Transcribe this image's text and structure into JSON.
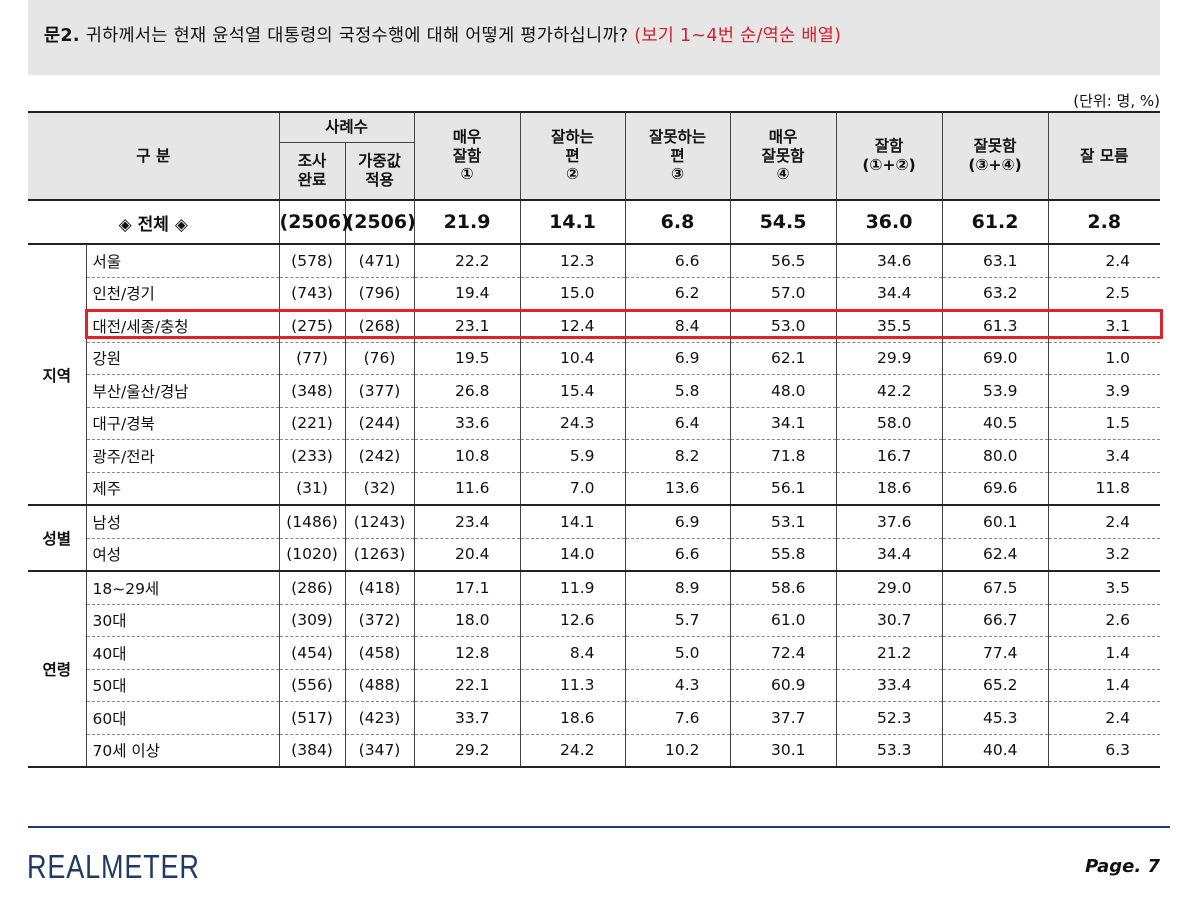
{
  "question": {
    "number": "문2.",
    "text": "귀하께서는 현재 윤석열 대통령의 국정수행에 대해 어떻게 평가하십니까?",
    "note": "(보기 1~4번 순/역순 배열)"
  },
  "unit": "(단위: 명, %)",
  "headers": {
    "category": "구  분",
    "sample_group": "사례수",
    "col_survey": [
      "조사",
      "완료"
    ],
    "col_weighted": [
      "가중값",
      "적용"
    ],
    "col_very_good": [
      "매우",
      "잘함",
      "①"
    ],
    "col_good": [
      "잘하는",
      "편",
      "②"
    ],
    "col_bad": [
      "잘못하는",
      "편",
      "③"
    ],
    "col_very_bad": [
      "매우",
      "잘못함",
      "④"
    ],
    "col_good_sum": [
      "잘함",
      "(①+②)"
    ],
    "col_bad_sum": [
      "잘못함",
      "(③+④)"
    ],
    "col_dont_know": "잘 모름"
  },
  "total": {
    "label": "◈ 전체 ◈",
    "values": [
      "(2506)",
      "(2506)",
      "21.9",
      "14.1",
      "6.8",
      "54.5",
      "36.0",
      "61.2",
      "2.8"
    ]
  },
  "groups": [
    {
      "label": "지역",
      "rows": [
        {
          "label": "서울",
          "values": [
            "(578)",
            "(471)",
            "22.2",
            "12.3",
            "6.6",
            "56.5",
            "34.6",
            "63.1",
            "2.4"
          ]
        },
        {
          "label": "인천/경기",
          "values": [
            "(743)",
            "(796)",
            "19.4",
            "15.0",
            "6.2",
            "57.0",
            "34.4",
            "63.2",
            "2.5"
          ]
        },
        {
          "label": "대전/세종/충청",
          "values": [
            "(275)",
            "(268)",
            "23.1",
            "12.4",
            "8.4",
            "53.0",
            "35.5",
            "61.3",
            "3.1"
          ]
        },
        {
          "label": "강원",
          "values": [
            "(77)",
            "(76)",
            "19.5",
            "10.4",
            "6.9",
            "62.1",
            "29.9",
            "69.0",
            "1.0"
          ]
        },
        {
          "label": "부산/울산/경남",
          "values": [
            "(348)",
            "(377)",
            "26.8",
            "15.4",
            "5.8",
            "48.0",
            "42.2",
            "53.9",
            "3.9"
          ]
        },
        {
          "label": "대구/경북",
          "values": [
            "(221)",
            "(244)",
            "33.6",
            "24.3",
            "6.4",
            "34.1",
            "58.0",
            "40.5",
            "1.5"
          ]
        },
        {
          "label": "광주/전라",
          "values": [
            "(233)",
            "(242)",
            "10.8",
            "5.9",
            "8.2",
            "71.8",
            "16.7",
            "80.0",
            "3.4"
          ]
        },
        {
          "label": "제주",
          "values": [
            "(31)",
            "(32)",
            "11.6",
            "7.0",
            "13.6",
            "56.1",
            "18.6",
            "69.6",
            "11.8"
          ]
        }
      ]
    },
    {
      "label": "성별",
      "rows": [
        {
          "label": "남성",
          "values": [
            "(1486)",
            "(1243)",
            "23.4",
            "14.1",
            "6.9",
            "53.1",
            "37.6",
            "60.1",
            "2.4"
          ]
        },
        {
          "label": "여성",
          "values": [
            "(1020)",
            "(1263)",
            "20.4",
            "14.0",
            "6.6",
            "55.8",
            "34.4",
            "62.4",
            "3.2"
          ]
        }
      ]
    },
    {
      "label": "연령",
      "rows": [
        {
          "label": "18~29세",
          "values": [
            "(286)",
            "(418)",
            "17.1",
            "11.9",
            "8.9",
            "58.6",
            "29.0",
            "67.5",
            "3.5"
          ]
        },
        {
          "label": "30대",
          "values": [
            "(309)",
            "(372)",
            "18.0",
            "12.6",
            "5.7",
            "61.0",
            "30.7",
            "66.7",
            "2.6"
          ]
        },
        {
          "label": "40대",
          "values": [
            "(454)",
            "(458)",
            "12.8",
            "8.4",
            "5.0",
            "72.4",
            "21.2",
            "77.4",
            "1.4"
          ]
        },
        {
          "label": "50대",
          "values": [
            "(556)",
            "(488)",
            "22.1",
            "11.3",
            "4.3",
            "60.9",
            "33.4",
            "65.2",
            "1.4"
          ]
        },
        {
          "label": "60대",
          "values": [
            "(517)",
            "(423)",
            "33.7",
            "18.6",
            "7.6",
            "37.7",
            "52.3",
            "45.3",
            "2.4"
          ]
        },
        {
          "label": "70세 이상",
          "values": [
            "(384)",
            "(347)",
            "29.2",
            "24.2",
            "10.2",
            "30.1",
            "53.3",
            "40.4",
            "6.3"
          ]
        }
      ]
    }
  ],
  "highlight_color": "#e0222a",
  "brand": "REALMETER",
  "brand_color": "#1f3a68",
  "page": "Page. 7"
}
